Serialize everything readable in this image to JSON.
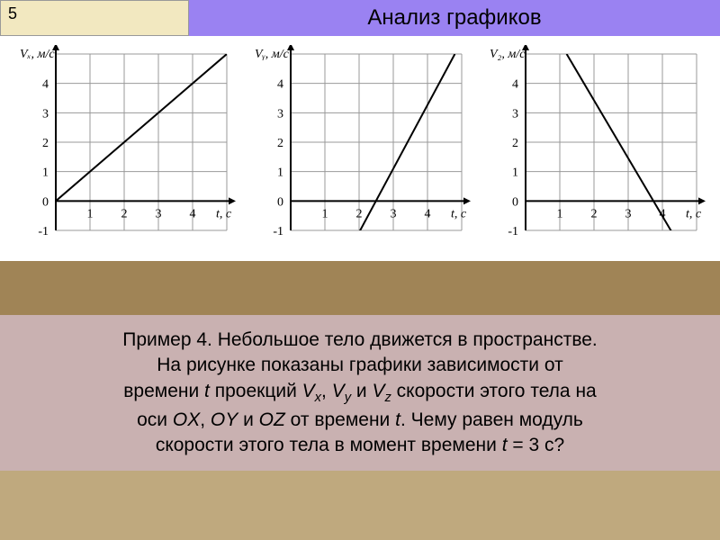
{
  "slide_number": "5",
  "title": "Анализ графиков",
  "problem": {
    "line1_a": "Пример 4. Небольшое тело движется в пространстве.",
    "line2_a": "На рисунке показаны графики зависимости от",
    "line3_pre": "времени ",
    "line3_mid1": " проекций ",
    "line3_mid2": " и ",
    "line3_post": " скорости этого тела на",
    "line4_pre": "оси ",
    "line4_c1": ", ",
    "line4_c2": " и ",
    "line4_mid": " от времени ",
    "line4_post": ". Чему равен модуль",
    "line5_pre": "скорости этого тела в момент времени ",
    "line5_eq": " = 3 с?",
    "var_t": "t",
    "var_vx": "V",
    "var_vy": "V",
    "var_vz": "V",
    "sub_x": "x",
    "sub_y": "y",
    "sub_z": "z",
    "ox": "OX",
    "oy": "OY",
    "oz": "OZ"
  },
  "axis": {
    "x_max": 5,
    "y_min": -1,
    "y_max": 5,
    "x_ticks": [
      "1",
      "2",
      "3",
      "4"
    ],
    "y_ticks": [
      "-1",
      "0",
      "1",
      "2",
      "3",
      "4"
    ],
    "xlabel": "t, с",
    "grid_color": "#999999",
    "axis_color": "#000000",
    "line_color": "#000000",
    "background": "#ffffff",
    "line_width": 2,
    "tick_font_size": 14,
    "label_font_size": 14
  },
  "charts": [
    {
      "ylabel": "Vₓ, м/с",
      "line": {
        "x1": 0,
        "y1": 0,
        "x2": 5,
        "y2": 5
      }
    },
    {
      "ylabel": "Vᵧ, м/с",
      "line": {
        "x1": 1.8,
        "y1": -1.5,
        "x2": 4.8,
        "y2": 5
      }
    },
    {
      "ylabel": "V₂, м/с",
      "line": {
        "x1": 1.2,
        "y1": 5,
        "x2": 4.5,
        "y2": -1.5
      }
    }
  ]
}
